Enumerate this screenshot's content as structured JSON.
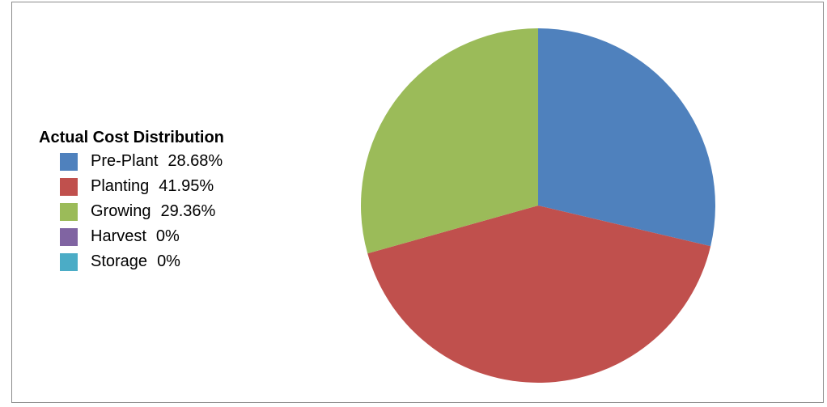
{
  "chart_data": {
    "type": "pie",
    "title": "Actual Cost Distribution",
    "legend_position": "left",
    "slices": [
      {
        "name": "Pre-Plant",
        "value": 28.68,
        "label": "28.68%",
        "color": "#4f81bd"
      },
      {
        "name": "Planting",
        "value": 41.95,
        "label": "41.95%",
        "color": "#c0504d"
      },
      {
        "name": "Growing",
        "value": 29.36,
        "label": "29.36%",
        "color": "#9bbb59"
      },
      {
        "name": "Harvest",
        "value": 0,
        "label": "0%",
        "color": "#8064a2"
      },
      {
        "name": "Storage",
        "value": 0,
        "label": "0%",
        "color": "#4bacc6"
      }
    ]
  }
}
